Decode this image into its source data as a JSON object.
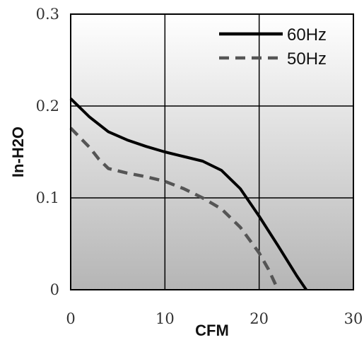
{
  "chart_data": {
    "type": "line",
    "title": "",
    "xlabel": "CFM",
    "ylabel": "In-H2O",
    "xlim": [
      0,
      30
    ],
    "ylim": [
      0,
      0.3
    ],
    "xticks": [
      0,
      10,
      20,
      30
    ],
    "yticks": [
      0,
      0.1,
      0.2,
      0.3
    ],
    "xtick_labels": [
      "0",
      "10",
      "20",
      "30"
    ],
    "ytick_labels": [
      "0",
      "0.1",
      "0.2",
      "0.3"
    ],
    "grid": true,
    "legend_position": "top-right",
    "series": [
      {
        "name": "60Hz",
        "style": "solid",
        "color": "#000000",
        "x": [
          0,
          2,
          4,
          6,
          8,
          10,
          12,
          14,
          16,
          18,
          20,
          22,
          24,
          25
        ],
        "y": [
          0.208,
          0.188,
          0.172,
          0.163,
          0.156,
          0.15,
          0.145,
          0.14,
          0.13,
          0.11,
          0.08,
          0.048,
          0.015,
          0
        ]
      },
      {
        "name": "50Hz",
        "style": "dashed",
        "color": "#555555",
        "x": [
          0,
          2,
          3,
          4,
          6,
          8,
          10,
          12,
          14,
          16,
          18,
          20,
          21,
          22
        ],
        "y": [
          0.176,
          0.155,
          0.142,
          0.132,
          0.127,
          0.123,
          0.118,
          0.11,
          0.1,
          0.088,
          0.068,
          0.04,
          0.022,
          0
        ]
      }
    ]
  }
}
